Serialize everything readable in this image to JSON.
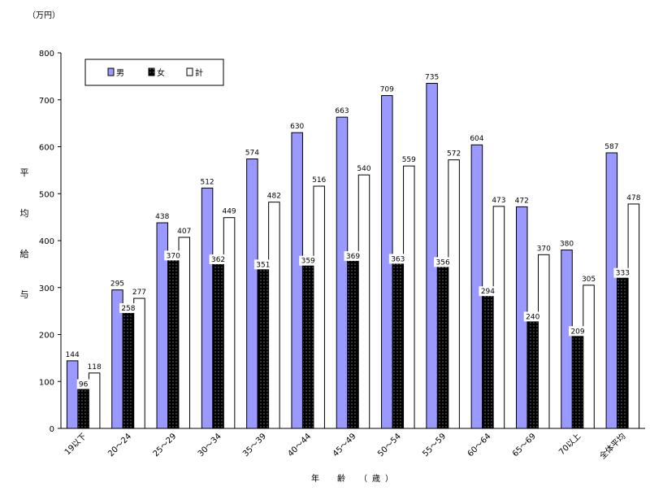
{
  "chart_data": {
    "type": "bar",
    "unit_label": "（万円）",
    "ylabel_chars": [
      "平",
      "均",
      "給",
      "与"
    ],
    "xlabel": "年　齢　（歳）",
    "ylim": [
      0,
      800
    ],
    "yticks": [
      0,
      100,
      200,
      300,
      400,
      500,
      600,
      700,
      800
    ],
    "grid": false,
    "legend_position": "top-left",
    "categories": [
      "19以下",
      "20～24",
      "25～29",
      "30～34",
      "35～39",
      "40～44",
      "45～49",
      "50～54",
      "55～59",
      "60～64",
      "65～69",
      "70以上",
      "全体平均"
    ],
    "series": [
      {
        "name": "男",
        "color": "#9999ff",
        "pattern": "solid",
        "values": [
          144,
          295,
          438,
          512,
          574,
          630,
          663,
          709,
          735,
          604,
          472,
          380,
          587
        ]
      },
      {
        "name": "女",
        "color": "#000000",
        "pattern": "dotted-black",
        "values": [
          96,
          258,
          370,
          362,
          351,
          359,
          369,
          363,
          356,
          294,
          240,
          209,
          333
        ]
      },
      {
        "name": "計",
        "color": "#ffffff",
        "pattern": "solid",
        "values": [
          118,
          277,
          407,
          449,
          482,
          516,
          540,
          559,
          572,
          473,
          370,
          305,
          478
        ]
      }
    ]
  }
}
